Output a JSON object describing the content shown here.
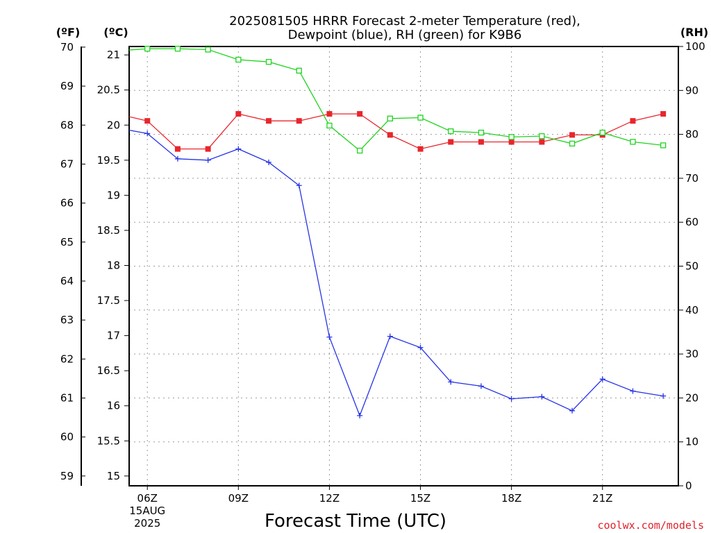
{
  "chart_data": {
    "type": "line",
    "title_line1": "2025081505 HRRR Forecast 2-meter Temperature (red),",
    "title_line2": "Dewpoint (blue), RH (green) for K9B6",
    "unit_f": "(ºF)",
    "unit_c": "(ºC)",
    "unit_rh": "(RH)",
    "xlabel": "Forecast Time (UTC)",
    "credit": "coolwx.com/models",
    "x_range": [
      5.4,
      23.5
    ],
    "x_ticks": [
      {
        "x": 6,
        "label": "06Z",
        "sub1": "15AUG",
        "sub2": "2025"
      },
      {
        "x": 9,
        "label": "09Z",
        "sub1": "",
        "sub2": ""
      },
      {
        "x": 12,
        "label": "12Z",
        "sub1": "",
        "sub2": ""
      },
      {
        "x": 15,
        "label": "15Z",
        "sub1": "",
        "sub2": ""
      },
      {
        "x": 18,
        "label": "18Z",
        "sub1": "",
        "sub2": ""
      },
      {
        "x": 21,
        "label": "21Z",
        "sub1": "",
        "sub2": ""
      }
    ],
    "y_c_range": [
      14.86,
      21.12
    ],
    "y_c_ticks": [
      "15",
      "15.5",
      "16",
      "16.5",
      "17",
      "17.5",
      "18",
      "18.5",
      "19",
      "19.5",
      "20",
      "20.5",
      "21"
    ],
    "y_f_ticks": [
      "59",
      "60",
      "61",
      "62",
      "63",
      "64",
      "65",
      "66",
      "67",
      "68",
      "69",
      "70"
    ],
    "y_rh_range": [
      0,
      100
    ],
    "y_rh_ticks": [
      "0",
      "10",
      "20",
      "30",
      "40",
      "50",
      "60",
      "70",
      "80",
      "90",
      "100"
    ],
    "hours": [
      5,
      6,
      7,
      8,
      9,
      10,
      11,
      12,
      13,
      14,
      15,
      16,
      17,
      18,
      19,
      20,
      21,
      22,
      23
    ],
    "series": [
      {
        "key": "temperature",
        "color": "#e8262d",
        "marker": "square-filled",
        "values": [
          20.16,
          20.06,
          19.66,
          19.66,
          20.16,
          20.06,
          20.06,
          20.16,
          20.16,
          19.86,
          19.66,
          19.76,
          19.76,
          19.76,
          19.76,
          19.86,
          19.86,
          20.06,
          20.16
        ]
      },
      {
        "key": "dewpoint",
        "color": "#2633e6",
        "marker": "plus",
        "values": [
          19.96,
          19.88,
          19.52,
          19.5,
          19.66,
          19.47,
          19.14,
          16.98,
          15.86,
          16.99,
          16.83,
          16.34,
          16.28,
          16.1,
          16.13,
          15.93,
          16.38,
          16.21,
          16.14
        ]
      },
      {
        "key": "rh",
        "color": "#1ed41e",
        "marker": "square-open",
        "values": [
          99,
          99.5,
          99.5,
          99.3,
          97,
          96.5,
          94.5,
          82,
          76.3,
          83.6,
          83.8,
          80.7,
          80.4,
          79.4,
          79.6,
          77.9,
          80.4,
          78.3,
          77.5
        ]
      }
    ]
  }
}
